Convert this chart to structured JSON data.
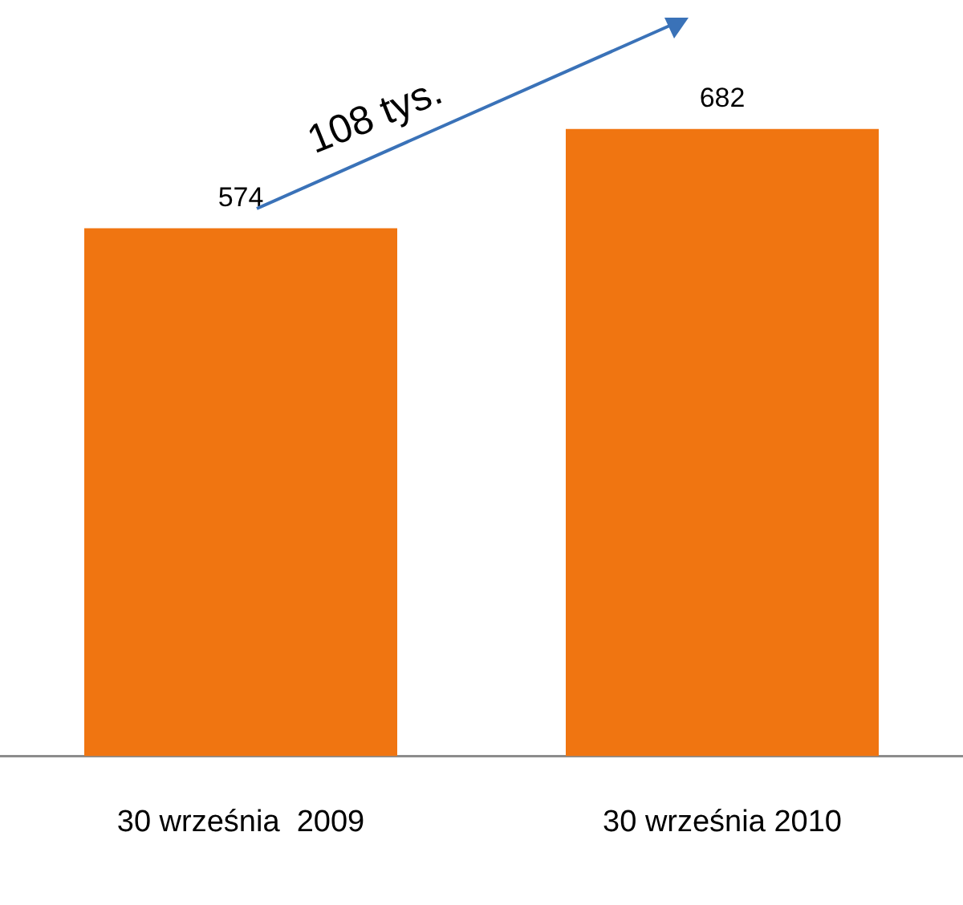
{
  "chart_data": {
    "type": "bar",
    "categories": [
      "30 września  2009",
      "30 września 2010"
    ],
    "values": [
      574,
      682
    ],
    "color": "#f07511",
    "data_labels": true,
    "grid": false,
    "tick_labels": "x",
    "legend": false,
    "annotations": [
      "108 tys."
    ]
  }
}
